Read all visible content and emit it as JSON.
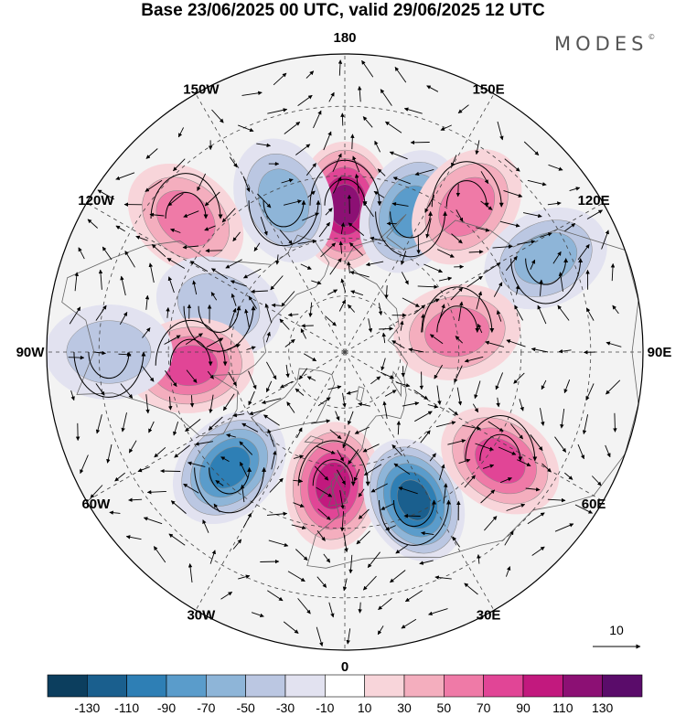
{
  "title": "Base 23/06/2025 00 UTC, valid 29/06/2025 12 UTC",
  "brand": "MODES",
  "brand_mark": "©",
  "map": {
    "projection": "north-polar-stereographic",
    "longitude_labels": [
      {
        "text": "180",
        "lon": 180
      },
      {
        "text": "150E",
        "lon": 150
      },
      {
        "text": "120E",
        "lon": 120
      },
      {
        "text": "90E",
        "lon": 90
      },
      {
        "text": "60E",
        "lon": 60
      },
      {
        "text": "30E",
        "lon": 30
      },
      {
        "text": "0",
        "lon": 0
      },
      {
        "text": "30W",
        "lon": -30
      },
      {
        "text": "60W",
        "lon": -60
      },
      {
        "text": "90W",
        "lon": -90
      },
      {
        "text": "120W",
        "lon": -120
      },
      {
        "text": "150W",
        "lon": -150
      }
    ],
    "anomaly_centers": [
      {
        "lon": 180,
        "lat": 52,
        "value": 100
      },
      {
        "lon": 155,
        "lat": 50,
        "value": -60
      },
      {
        "lon": 140,
        "lat": 42,
        "value": 50
      },
      {
        "lon": -158,
        "lat": 48,
        "value": -50
      },
      {
        "lon": -130,
        "lat": 38,
        "value": 40
      },
      {
        "lon": -110,
        "lat": 55,
        "value": -30
      },
      {
        "lon": -85,
        "lat": 50,
        "value": 70
      },
      {
        "lon": -90,
        "lat": 32,
        "value": -30
      },
      {
        "lon": -45,
        "lat": 48,
        "value": -90
      },
      {
        "lon": -5,
        "lat": 55,
        "value": 80
      },
      {
        "lon": 25,
        "lat": 48,
        "value": -100
      },
      {
        "lon": 55,
        "lat": 42,
        "value": 60
      },
      {
        "lon": 115,
        "lat": 35,
        "value": -40
      },
      {
        "lon": 100,
        "lat": 60,
        "value": 40
      }
    ],
    "vector_reference": {
      "label": "10"
    }
  },
  "colorbar": {
    "labels": [
      "-130",
      "-110",
      "-90",
      "-70",
      "-50",
      "-30",
      "-10",
      "10",
      "30",
      "50",
      "70",
      "90",
      "110",
      "130"
    ],
    "colors": [
      "#0c3e5e",
      "#1a5f8e",
      "#2e7fb5",
      "#5a9ccb",
      "#8eb5d8",
      "#bbc7e2",
      "#e2e2f0",
      "#ffffff",
      "#f8d5da",
      "#f4aebe",
      "#ef7aa7",
      "#e14596",
      "#c2197e",
      "#8c1074",
      "#5a0c6a"
    ]
  }
}
